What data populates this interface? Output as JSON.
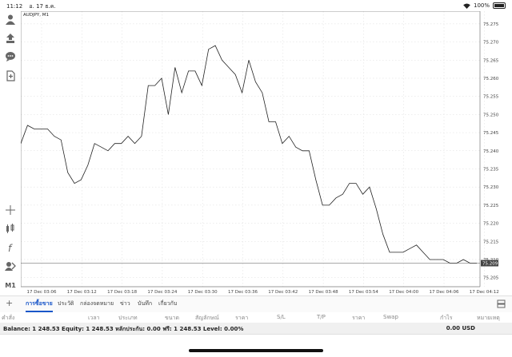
{
  "status": {
    "time": "11:12",
    "date": "อ. 17 ธ.ค.",
    "battery": "100%"
  },
  "symbol": "AUDJPY, M1",
  "toolbar": {
    "top": [
      "account-icon",
      "trade-icon",
      "chat-icon",
      "document-icon"
    ],
    "bottom": [
      "crosshair-icon",
      "indicator-icon",
      "function-icon",
      "objects-icon"
    ],
    "timeframe": "M1"
  },
  "chart_data": {
    "type": "line",
    "yticks": [
      "75.275",
      "75.270",
      "75.265",
      "75.260",
      "75.255",
      "75.250",
      "75.245",
      "75.240",
      "75.235",
      "75.230",
      "75.225",
      "75.220",
      "75.215",
      "75.210",
      "75.205"
    ],
    "ylim": [
      75.2025,
      75.2785
    ],
    "xticks": [
      "17 Dec 03:06",
      "17 Dec 03:12",
      "17 Dec 03:18",
      "17 Dec 03:24",
      "17 Dec 03:30",
      "17 Dec 03:36",
      "17 Dec 03:42",
      "17 Dec 03:48",
      "17 Dec 03:54",
      "17 Dec 04:00",
      "17 Dec 04:06",
      "17 Dec 04:12"
    ],
    "current_price": "75.209",
    "values": [
      75.242,
      75.247,
      75.246,
      75.246,
      75.246,
      75.244,
      75.243,
      75.234,
      75.231,
      75.232,
      75.236,
      75.242,
      75.241,
      75.24,
      75.242,
      75.242,
      75.244,
      75.242,
      75.244,
      75.258,
      75.258,
      75.26,
      75.25,
      75.263,
      75.256,
      75.262,
      75.262,
      75.258,
      75.268,
      75.269,
      75.265,
      75.263,
      75.261,
      75.256,
      75.265,
      75.259,
      75.256,
      75.248,
      75.248,
      75.242,
      75.244,
      75.241,
      75.24,
      75.24,
      75.232,
      75.225,
      75.225,
      75.227,
      75.228,
      75.231,
      75.231,
      75.228,
      75.23,
      75.224,
      75.217,
      75.212,
      75.212,
      75.212,
      75.213,
      75.214,
      75.212,
      75.21,
      75.21,
      75.21,
      75.209,
      75.209,
      75.21,
      75.209,
      75.209
    ]
  },
  "tabs": [
    "การซื้อขาย",
    "ประวัติ",
    "กล่องจดหมาย",
    "ข่าว",
    "บันทึก",
    "เกี่ยวกับ"
  ],
  "columns": [
    "คำสั่ง",
    "เวลา",
    "ประเภท",
    "ขนาด",
    "สัญลักษณ์",
    "ราคา",
    "S/L",
    "T/P",
    "ราคา",
    "Swap",
    "กำไร",
    "หมายเหตุ"
  ],
  "balance": {
    "text": "Balance: 1 248.53 Equity: 1 248.53 หลักประกัน: 0.00 ฟรี: 1 248.53 Level: 0.00%",
    "value": "0.00  USD"
  }
}
